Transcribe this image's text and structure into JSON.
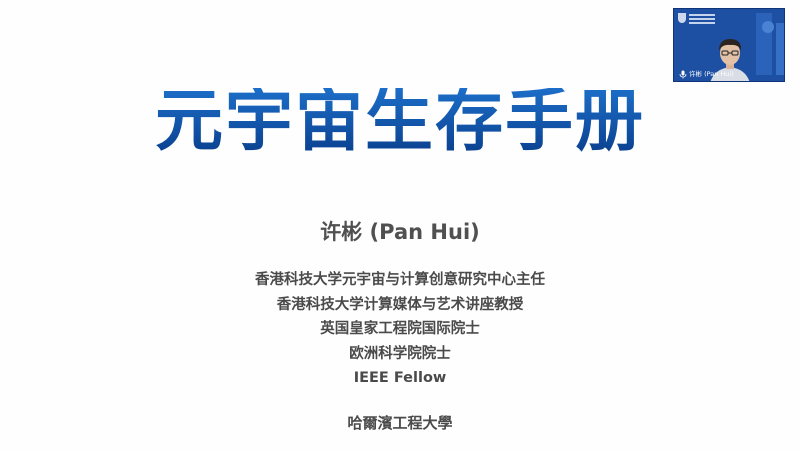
{
  "slide": {
    "title": "元宇宙生存手册",
    "presenter": "许彬 (Pan Hui)",
    "affiliations": [
      "香港科技大学元宇宙与计算创意研究中心主任",
      "香港科技大学计算媒体与艺术讲座教授",
      "英国皇家工程院国际院士",
      "欧洲科学院院士",
      "IEEE Fellow"
    ],
    "institution": "哈爾濱工程大學"
  },
  "video": {
    "participant_name": "许彬 (Pan Hui)",
    "mic_icon": "microphone-icon",
    "background_color": "#1d4fa3"
  },
  "colors": {
    "title_blue_top": "#1c6ec8",
    "title_blue_bottom": "#0a3f8e",
    "text_gray": "#4a4a4a"
  }
}
